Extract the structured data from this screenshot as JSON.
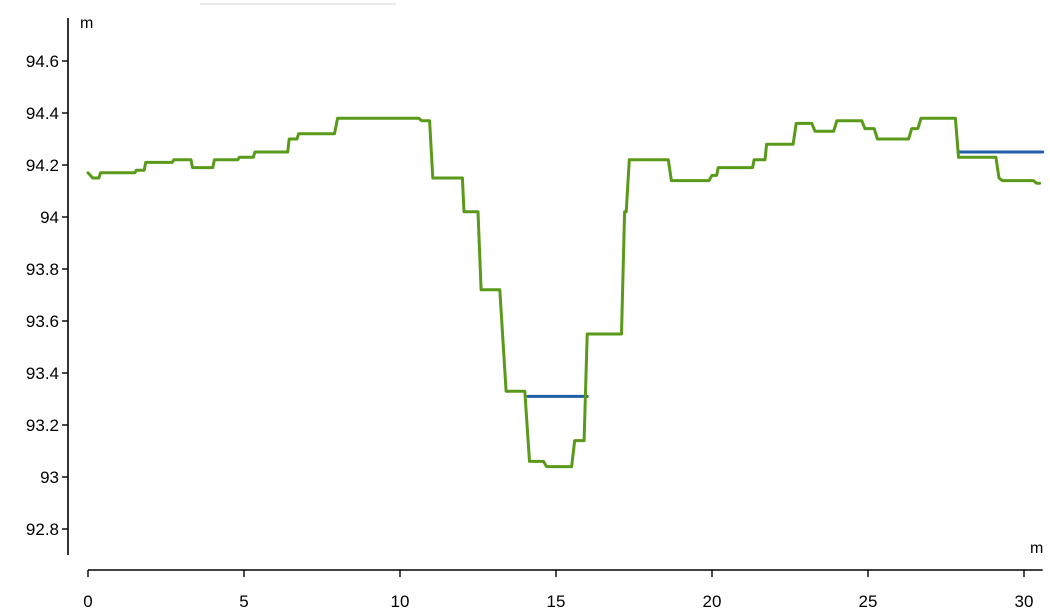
{
  "chart_data": {
    "type": "line",
    "xlabel": "m",
    "ylabel": "m",
    "xlim": [
      0,
      30.6
    ],
    "ylim": [
      92.7,
      94.75
    ],
    "xticks": [
      0,
      5,
      10,
      15,
      20,
      25,
      30
    ],
    "xtick_labels": [
      "0",
      "5",
      "10",
      "15",
      "20",
      "25",
      "30"
    ],
    "yticks": [
      92.8,
      93.0,
      93.2,
      93.4,
      93.6,
      93.8,
      94.0,
      94.2,
      94.4,
      94.6
    ],
    "ytick_labels": [
      "92.8",
      "93",
      "93.2",
      "93.4",
      "93.6",
      "93.8",
      "94",
      "94.2",
      "94.4",
      "94.6"
    ],
    "grid": false,
    "legend": "none",
    "series": [
      {
        "color": "#1f5fa8",
        "points": [
          [
            14.1,
            93.31
          ],
          [
            16.0,
            93.31
          ],
          [
            27.9,
            94.25
          ],
          [
            30.6,
            94.25
          ]
        ],
        "segments": [
          [
            0,
            1
          ],
          [
            2,
            3
          ]
        ]
      },
      {
        "color": "#5a9a1a",
        "points": [
          [
            0.0,
            94.17
          ],
          [
            0.15,
            94.15
          ],
          [
            0.35,
            94.15
          ],
          [
            0.4,
            94.17
          ],
          [
            1.5,
            94.17
          ],
          [
            1.55,
            94.18
          ],
          [
            1.8,
            94.18
          ],
          [
            1.85,
            94.21
          ],
          [
            2.7,
            94.21
          ],
          [
            2.75,
            94.22
          ],
          [
            3.3,
            94.22
          ],
          [
            3.35,
            94.19
          ],
          [
            4.0,
            94.19
          ],
          [
            4.05,
            94.22
          ],
          [
            4.8,
            94.22
          ],
          [
            4.85,
            94.23
          ],
          [
            5.3,
            94.23
          ],
          [
            5.35,
            94.25
          ],
          [
            6.4,
            94.25
          ],
          [
            6.45,
            94.3
          ],
          [
            6.7,
            94.3
          ],
          [
            6.75,
            94.32
          ],
          [
            7.9,
            94.32
          ],
          [
            8.0,
            94.38
          ],
          [
            10.6,
            94.38
          ],
          [
            10.7,
            94.37
          ],
          [
            10.95,
            94.37
          ],
          [
            11.05,
            94.15
          ],
          [
            12.0,
            94.15
          ],
          [
            12.05,
            94.02
          ],
          [
            12.5,
            94.02
          ],
          [
            12.6,
            93.72
          ],
          [
            13.2,
            93.72
          ],
          [
            13.4,
            93.33
          ],
          [
            14.0,
            93.33
          ],
          [
            14.15,
            93.06
          ],
          [
            14.6,
            93.06
          ],
          [
            14.7,
            93.04
          ],
          [
            15.5,
            93.04
          ],
          [
            15.6,
            93.14
          ],
          [
            15.9,
            93.14
          ],
          [
            16.0,
            93.55
          ],
          [
            17.1,
            93.55
          ],
          [
            17.2,
            94.02
          ],
          [
            17.25,
            94.02
          ],
          [
            17.35,
            94.22
          ],
          [
            18.6,
            94.22
          ],
          [
            18.7,
            94.14
          ],
          [
            19.9,
            94.14
          ],
          [
            20.0,
            94.16
          ],
          [
            20.15,
            94.16
          ],
          [
            20.2,
            94.19
          ],
          [
            21.3,
            94.19
          ],
          [
            21.35,
            94.22
          ],
          [
            21.7,
            94.22
          ],
          [
            21.75,
            94.28
          ],
          [
            22.6,
            94.28
          ],
          [
            22.7,
            94.36
          ],
          [
            23.2,
            94.36
          ],
          [
            23.3,
            94.33
          ],
          [
            23.9,
            94.33
          ],
          [
            24.0,
            94.37
          ],
          [
            24.8,
            94.37
          ],
          [
            24.9,
            94.34
          ],
          [
            25.2,
            94.34
          ],
          [
            25.3,
            94.3
          ],
          [
            26.3,
            94.3
          ],
          [
            26.4,
            94.34
          ],
          [
            26.6,
            94.34
          ],
          [
            26.7,
            94.38
          ],
          [
            27.8,
            94.38
          ],
          [
            27.9,
            94.23
          ],
          [
            29.1,
            94.23
          ],
          [
            29.2,
            94.15
          ],
          [
            29.3,
            94.14
          ],
          [
            30.3,
            94.14
          ],
          [
            30.4,
            94.13
          ],
          [
            30.5,
            94.13
          ]
        ]
      }
    ]
  }
}
